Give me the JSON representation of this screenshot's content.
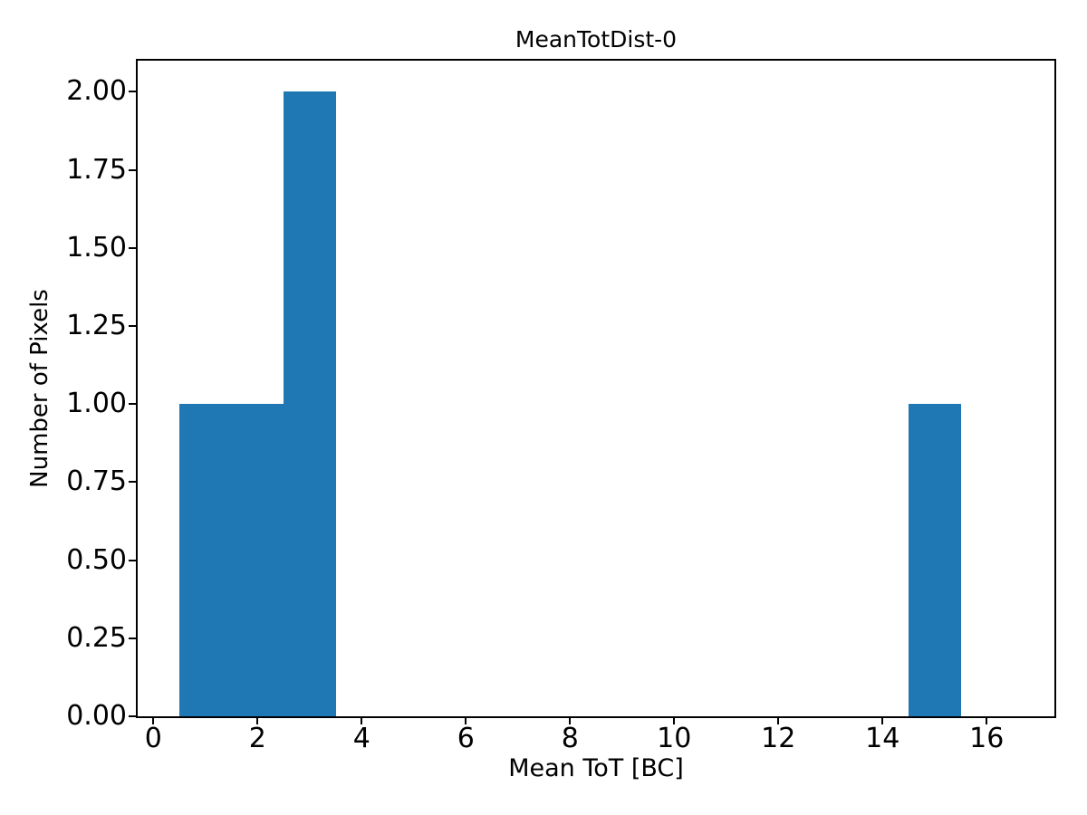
{
  "chart_data": {
    "type": "bar",
    "subtype": "histogram",
    "title": "MeanTotDist-0",
    "xlabel": "Mean ToT [BC]",
    "ylabel": "Number of Pixels",
    "bar_color": "#1f77b4",
    "axis_color": "#000000",
    "background_color": "#ffffff",
    "grid": false,
    "legend": null,
    "bin_edges": [
      0.5,
      1.5,
      2.5,
      3.5,
      4.5,
      5.5,
      6.5,
      7.5,
      8.5,
      9.5,
      10.5,
      11.5,
      12.5,
      13.5,
      14.5,
      15.5,
      16.5
    ],
    "counts": [
      1,
      1,
      2,
      0,
      0,
      0,
      0,
      0,
      0,
      0,
      0,
      0,
      0,
      0,
      1,
      0
    ],
    "xlim": [
      -0.3,
      17.3
    ],
    "ylim": [
      0,
      2.1
    ],
    "xticks": [
      {
        "value": 0,
        "label": "0"
      },
      {
        "value": 2,
        "label": "2"
      },
      {
        "value": 4,
        "label": "4"
      },
      {
        "value": 6,
        "label": "6"
      },
      {
        "value": 8,
        "label": "8"
      },
      {
        "value": 10,
        "label": "10"
      },
      {
        "value": 12,
        "label": "12"
      },
      {
        "value": 14,
        "label": "14"
      },
      {
        "value": 16,
        "label": "16"
      }
    ],
    "yticks": [
      {
        "value": 0.0,
        "label": "0.00"
      },
      {
        "value": 0.25,
        "label": "0.25"
      },
      {
        "value": 0.5,
        "label": "0.50"
      },
      {
        "value": 0.75,
        "label": "0.75"
      },
      {
        "value": 1.0,
        "label": "1.00"
      },
      {
        "value": 1.25,
        "label": "1.25"
      },
      {
        "value": 1.5,
        "label": "1.50"
      },
      {
        "value": 1.75,
        "label": "1.75"
      },
      {
        "value": 2.0,
        "label": "2.00"
      }
    ]
  }
}
